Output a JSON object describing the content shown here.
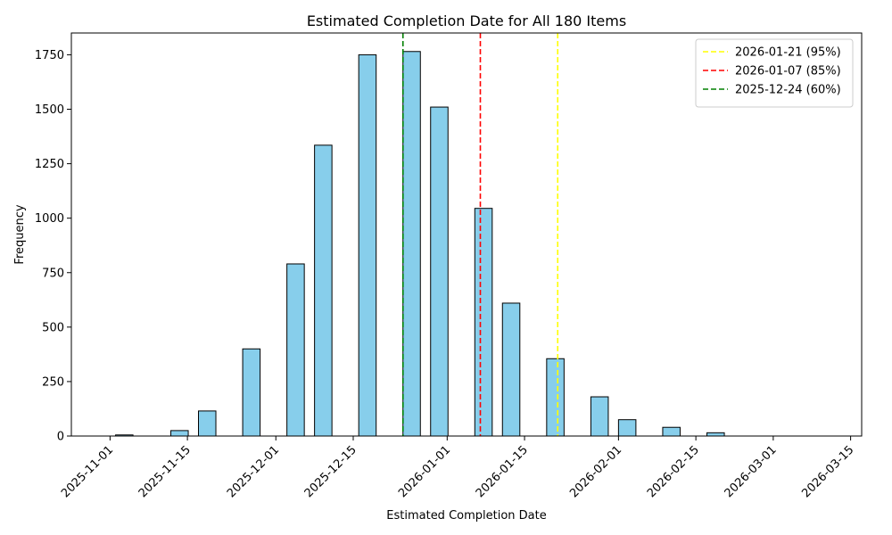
{
  "chart_data": {
    "type": "bar",
    "title": "Estimated Completion Date for All 180 Items",
    "xlabel": "Estimated Completion Date",
    "ylabel": "Frequency",
    "xlim": [
      "2025-10-25",
      "2026-03-17"
    ],
    "ylim": [
      0,
      1850
    ],
    "x_ticks": [
      "2025-11-01",
      "2025-11-15",
      "2025-12-01",
      "2025-12-15",
      "2026-01-01",
      "2026-01-15",
      "2026-02-01",
      "2026-02-15",
      "2026-03-01",
      "2026-03-15"
    ],
    "y_ticks": [
      0,
      250,
      500,
      750,
      1000,
      1250,
      1500,
      1750
    ],
    "bar_color": "#87ceeb",
    "bar_edge_color": "#000000",
    "bins": [
      {
        "start": "2025-10-28",
        "end": "2025-10-31",
        "value": 0
      },
      {
        "start": "2025-11-02",
        "end": "2025-11-05",
        "value": 5
      },
      {
        "start": "2025-11-12",
        "end": "2025-11-15",
        "value": 25
      },
      {
        "start": "2025-11-17",
        "end": "2025-11-20",
        "value": 115
      },
      {
        "start": "2025-11-25",
        "end": "2025-11-28",
        "value": 400
      },
      {
        "start": "2025-12-03",
        "end": "2025-12-06",
        "value": 790
      },
      {
        "start": "2025-12-08",
        "end": "2025-12-11",
        "value": 1335
      },
      {
        "start": "2025-12-16",
        "end": "2025-12-19",
        "value": 1750
      },
      {
        "start": "2025-12-24",
        "end": "2025-12-27",
        "value": 1765
      },
      {
        "start": "2025-12-29",
        "end": "2026-01-01",
        "value": 1510
      },
      {
        "start": "2026-01-06",
        "end": "2026-01-09",
        "value": 1045
      },
      {
        "start": "2026-01-11",
        "end": "2026-01-14",
        "value": 610
      },
      {
        "start": "2026-01-19",
        "end": "2026-01-22",
        "value": 355
      },
      {
        "start": "2026-01-27",
        "end": "2026-01-30",
        "value": 180
      },
      {
        "start": "2026-02-01",
        "end": "2026-02-04",
        "value": 75
      },
      {
        "start": "2026-02-09",
        "end": "2026-02-12",
        "value": 40
      },
      {
        "start": "2026-02-17",
        "end": "2026-02-20",
        "value": 15
      },
      {
        "start": "2026-02-22",
        "end": "2026-02-25",
        "value": 0
      },
      {
        "start": "2026-03-02",
        "end": "2026-03-05",
        "value": 0
      },
      {
        "start": "2026-03-07",
        "end": "2026-03-10",
        "value": 0
      }
    ],
    "reference_lines": [
      {
        "date": "2026-01-21",
        "label": "2026-01-21 (95%)",
        "color": "#ffff00"
      },
      {
        "date": "2026-01-07",
        "label": "2026-01-07 (85%)",
        "color": "#ff0000"
      },
      {
        "date": "2025-12-24",
        "label": "2025-12-24 (60%)",
        "color": "#008000"
      }
    ],
    "legend_position": "top-right",
    "grid": false
  }
}
